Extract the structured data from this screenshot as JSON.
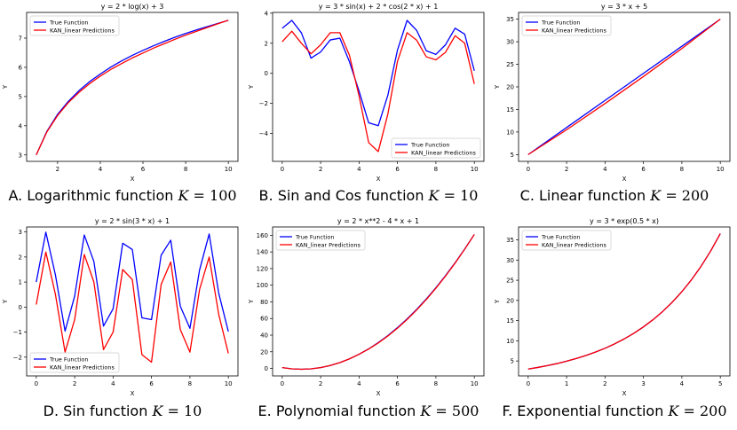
{
  "colors": {
    "true_function": "#0000ff",
    "kan_predictions": "#ff0000"
  },
  "chart_data": [
    {
      "type": "line",
      "title": "y = 2 * log(x) + 3",
      "xlabel": "X",
      "ylabel": "Y",
      "xlim": [
        0.55,
        10.45
      ],
      "ylim": [
        2.78,
        7.88
      ],
      "xticks": [
        2,
        4,
        6,
        8,
        10
      ],
      "yticks": [
        3,
        4,
        5,
        6,
        7
      ],
      "legend": "top-left",
      "caption": {
        "text": "A. Logarithmic function",
        "k": "K",
        "eq": "= 100"
      },
      "series": [
        {
          "name": "True Function",
          "color": "#0000ff",
          "x": [
            1,
            1.5,
            2,
            2.5,
            3,
            3.5,
            4,
            4.5,
            5,
            5.5,
            6,
            6.5,
            7,
            7.5,
            8,
            8.5,
            9,
            9.5,
            10
          ],
          "y": [
            3.0,
            3.81,
            4.39,
            4.83,
            5.2,
            5.51,
            5.77,
            6.01,
            6.22,
            6.41,
            6.58,
            6.74,
            6.89,
            7.03,
            7.16,
            7.28,
            7.39,
            7.5,
            7.61
          ]
        },
        {
          "name": "KAN_linear Predictions",
          "color": "#ff0000",
          "x": [
            1,
            1.5,
            2,
            2.5,
            3,
            3.5,
            4,
            4.5,
            5,
            5.5,
            6,
            6.5,
            7,
            7.5,
            8,
            8.5,
            9,
            9.5,
            10
          ],
          "y": [
            3.0,
            3.79,
            4.35,
            4.79,
            5.14,
            5.44,
            5.7,
            5.93,
            6.13,
            6.32,
            6.49,
            6.66,
            6.81,
            6.96,
            7.1,
            7.23,
            7.36,
            7.49,
            7.61
          ]
        }
      ]
    },
    {
      "type": "line",
      "title": "y = 3 * sin(x) + 2 * cos(2 * x) + 1",
      "xlabel": "X",
      "ylabel": "Y",
      "xlim": [
        -0.5,
        10.5
      ],
      "ylim": [
        -5.85,
        4.05
      ],
      "xticks": [
        0,
        2,
        4,
        6,
        8,
        10
      ],
      "yticks": [
        -4,
        -2,
        0,
        2,
        4
      ],
      "legend": "bottom-right",
      "caption": {
        "text": "B. Sin and Cos function",
        "k": "K",
        "eq": "= 10"
      },
      "series": [
        {
          "name": "True Function",
          "color": "#0000ff",
          "x": [
            0,
            0.5,
            1,
            1.5,
            2,
            2.5,
            3,
            3.5,
            4,
            4.5,
            5,
            5.5,
            6,
            6.5,
            7,
            7.5,
            8,
            8.5,
            9,
            9.5,
            10
          ],
          "y": [
            3.0,
            3.52,
            2.69,
            1.01,
            1.42,
            2.22,
            2.34,
            0.77,
            -1.18,
            -3.29,
            -3.48,
            -1.45,
            1.55,
            3.52,
            2.85,
            1.5,
            1.26,
            1.9,
            3.0,
            2.6,
            0.17
          ]
        },
        {
          "name": "KAN_linear Predictions",
          "color": "#ff0000",
          "x": [
            0,
            0.5,
            1,
            1.5,
            2,
            2.5,
            3,
            3.5,
            4,
            4.5,
            5,
            5.5,
            6,
            6.5,
            7,
            7.5,
            8,
            8.5,
            9,
            9.5,
            10
          ],
          "y": [
            2.1,
            2.8,
            2.0,
            1.3,
            1.9,
            2.7,
            2.7,
            1.2,
            -1.5,
            -4.6,
            -5.2,
            -2.7,
            0.8,
            2.7,
            2.2,
            1.1,
            0.9,
            1.4,
            2.5,
            2.0,
            -0.7
          ]
        }
      ]
    },
    {
      "type": "line",
      "title": "y = 3 * x + 5",
      "xlabel": "X",
      "ylabel": "Y",
      "xlim": [
        -0.5,
        10.5
      ],
      "ylim": [
        3.5,
        36.5
      ],
      "xticks": [
        0,
        2,
        4,
        6,
        8,
        10
      ],
      "yticks": [
        5,
        10,
        15,
        20,
        25,
        30,
        35
      ],
      "legend": "top-left",
      "caption": {
        "text": "C. Linear function",
        "k": "K",
        "eq": "= 200"
      },
      "series": [
        {
          "name": "True Function",
          "color": "#0000ff",
          "x": [
            0,
            2,
            4,
            6,
            8,
            10
          ],
          "y": [
            5,
            11,
            17,
            23,
            29,
            35
          ]
        },
        {
          "name": "KAN_linear Predictions",
          "color": "#ff0000",
          "x": [
            0,
            2,
            4,
            6,
            8,
            10
          ],
          "y": [
            5,
            10.5,
            16.3,
            22.3,
            28.5,
            35
          ]
        }
      ]
    },
    {
      "type": "line",
      "title": "y = 2 * sin(3 * x) + 1",
      "xlabel": "X",
      "ylabel": "Y",
      "xlim": [
        -0.5,
        10.5
      ],
      "ylim": [
        -2.75,
        3.2
      ],
      "xticks": [
        0,
        2,
        4,
        6,
        8,
        10
      ],
      "yticks": [
        -2,
        -1,
        0,
        1,
        2,
        3
      ],
      "legend": "bottom-left",
      "caption": {
        "text": "D. Sin function",
        "k": "K",
        "eq": "= 10"
      },
      "series": [
        {
          "name": "True Function",
          "color": "#0000ff",
          "x": [
            0,
            0.5,
            1,
            1.5,
            2,
            2.5,
            3,
            3.5,
            4,
            4.5,
            5,
            5.5,
            6,
            6.5,
            7,
            7.5,
            8,
            8.5,
            9,
            9.5,
            10
          ],
          "y": [
            1.0,
            2.99,
            1.28,
            -0.96,
            0.44,
            2.88,
            1.82,
            -0.76,
            -0.07,
            2.55,
            2.3,
            -0.43,
            -0.5,
            2.07,
            2.67,
            0.03,
            -0.85,
            1.48,
            2.92,
            0.55,
            -0.98
          ]
        },
        {
          "name": "KAN_linear Predictions",
          "color": "#ff0000",
          "x": [
            0,
            0.5,
            1,
            1.5,
            2,
            2.5,
            3,
            3.5,
            4,
            4.5,
            5,
            5.5,
            6,
            6.5,
            7,
            7.5,
            8,
            8.5,
            9,
            9.5,
            10
          ],
          "y": [
            0.1,
            2.2,
            0.5,
            -1.8,
            -0.5,
            2.1,
            1.0,
            -1.7,
            -1.0,
            1.5,
            1.1,
            -1.9,
            -2.2,
            0.9,
            1.8,
            -0.9,
            -1.8,
            0.7,
            2.0,
            -0.3,
            -1.85
          ]
        }
      ]
    },
    {
      "type": "line",
      "title": "y = 2 * x**2 - 4 * x + 1",
      "xlabel": "X",
      "ylabel": "Y",
      "xlim": [
        -0.5,
        10.5
      ],
      "ylim": [
        -9,
        170
      ],
      "xticks": [
        0,
        2,
        4,
        6,
        8,
        10
      ],
      "yticks": [
        0,
        20,
        40,
        60,
        80,
        100,
        120,
        140,
        160
      ],
      "legend": "top-left",
      "caption": {
        "text": "E. Polynomial function",
        "k": "K",
        "eq": "= 500"
      },
      "series": [
        {
          "name": "True Function",
          "color": "#0000ff",
          "x": [
            0,
            0.5,
            1,
            1.5,
            2,
            2.5,
            3,
            3.5,
            4,
            4.5,
            5,
            5.5,
            6,
            6.5,
            7,
            7.5,
            8,
            8.5,
            9,
            9.5,
            10
          ],
          "y": [
            1,
            -0.5,
            -1,
            -0.5,
            1,
            3.5,
            7,
            11.5,
            17,
            23.5,
            31,
            39.5,
            49,
            59.5,
            71,
            83.5,
            97,
            111.5,
            127,
            143.5,
            161
          ]
        },
        {
          "name": "KAN_linear Predictions",
          "color": "#ff0000",
          "x": [
            0,
            0.5,
            1,
            1.5,
            2,
            2.5,
            3,
            3.5,
            4,
            4.5,
            5,
            5.5,
            6,
            6.5,
            7,
            7.5,
            8,
            8.5,
            9,
            9.5,
            10
          ],
          "y": [
            1,
            -0.5,
            -1,
            -0.5,
            1,
            3.5,
            7,
            11.5,
            17,
            23.3,
            30.6,
            39,
            48.4,
            58.8,
            70.3,
            82.8,
            96.4,
            111,
            126.6,
            143.3,
            161
          ]
        }
      ]
    },
    {
      "type": "line",
      "title": "y = 3 * exp(0.5 * x)",
      "xlabel": "X",
      "ylabel": "Y",
      "xlim": [
        -0.25,
        5.25
      ],
      "ylim": [
        1.3,
        38.2
      ],
      "xticks": [
        0,
        1,
        2,
        3,
        4,
        5
      ],
      "yticks": [
        5,
        10,
        15,
        20,
        25,
        30,
        35
      ],
      "legend": "top-left",
      "caption": {
        "text": "F. Exponential function",
        "k": "K",
        "eq": "= 200"
      },
      "series": [
        {
          "name": "True Function",
          "color": "#0000ff",
          "x": [
            0,
            0.25,
            0.5,
            0.75,
            1,
            1.25,
            1.5,
            1.75,
            2,
            2.25,
            2.5,
            2.75,
            3,
            3.25,
            3.5,
            3.75,
            4,
            4.25,
            4.5,
            4.75,
            5
          ],
          "y": [
            3,
            3.4,
            3.85,
            4.36,
            4.95,
            5.6,
            6.35,
            7.2,
            8.15,
            9.24,
            10.47,
            11.86,
            13.45,
            15.23,
            17.26,
            19.56,
            22.17,
            25.12,
            28.46,
            32.25,
            36.55
          ]
        },
        {
          "name": "KAN_linear Predictions",
          "color": "#ff0000",
          "x": [
            0,
            0.25,
            0.5,
            0.75,
            1,
            1.25,
            1.5,
            1.75,
            2,
            2.25,
            2.5,
            2.75,
            3,
            3.25,
            3.5,
            3.75,
            4,
            4.25,
            4.5,
            4.75,
            5
          ],
          "y": [
            3,
            3.4,
            3.85,
            4.36,
            4.95,
            5.6,
            6.35,
            7.2,
            8.15,
            9.24,
            10.47,
            11.86,
            13.45,
            15.23,
            17.26,
            19.56,
            22.17,
            25.12,
            28.46,
            32.25,
            36.55
          ]
        }
      ]
    }
  ]
}
